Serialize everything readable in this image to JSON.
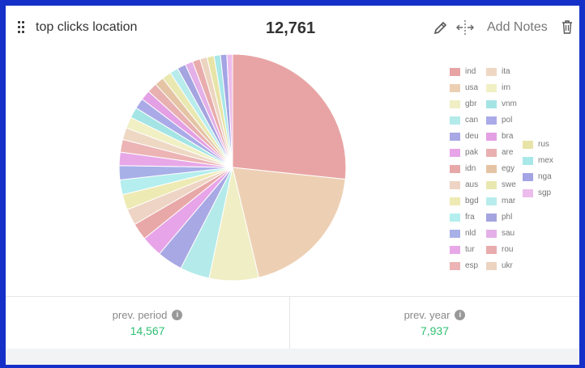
{
  "header": {
    "title": "top clicks location",
    "total": "12,761",
    "add_notes": "Add Notes"
  },
  "footer": {
    "prev_period_label": "prev. period",
    "prev_period_value": "14,567",
    "prev_year_label": "prev. year",
    "prev_year_value": "7,937"
  },
  "icons": [
    "drag-handle-icon",
    "pencil-icon",
    "move-icon",
    "trash-icon",
    "info-icon"
  ],
  "chart_data": {
    "type": "pie",
    "legend_placement": "right",
    "unit": "percent (estimated)",
    "categories": [
      "ind",
      "usa",
      "gbr",
      "can",
      "deu",
      "pak",
      "idn",
      "aus",
      "bgd",
      "fra",
      "nld",
      "tur",
      "esp",
      "ita",
      "irn",
      "vnm",
      "pol",
      "bra",
      "are",
      "egy",
      "swe",
      "mar",
      "phl",
      "sau",
      "rou",
      "ukr",
      "rus",
      "mex",
      "nga",
      "sgp"
    ],
    "values": [
      26.5,
      19.5,
      7,
      4.2,
      3.6,
      3,
      2.4,
      2.3,
      2.2,
      2.1,
      2.0,
      1.9,
      1.8,
      1.7,
      1.6,
      1.5,
      1.5,
      1.4,
      1.4,
      1.3,
      1.3,
      1.2,
      1.2,
      1.1,
      1.1,
      1.0,
      1.0,
      0.9,
      0.9,
      0.8
    ],
    "colors": [
      "#e8a4a4",
      "#edd0b4",
      "#f0eec4",
      "#b4eaea",
      "#a8a8e4",
      "#e8a4e8",
      "#e8a8a8",
      "#eed4c4",
      "#eeeab4",
      "#b4eeee",
      "#a8b0e8",
      "#e8a8e8",
      "#ecb4b4",
      "#eed8c4",
      "#f0f0c4",
      "#a4e4e4",
      "#aaaae8",
      "#e4a0e4",
      "#e8b0b0",
      "#e4c4a4",
      "#e8e8b0",
      "#b8ecec",
      "#a4a4e0",
      "#e4b0e8",
      "#e8acac",
      "#ecd4c0",
      "#e8e4a8",
      "#a8e8e8",
      "#a4a4e4",
      "#ecbcec"
    ]
  }
}
